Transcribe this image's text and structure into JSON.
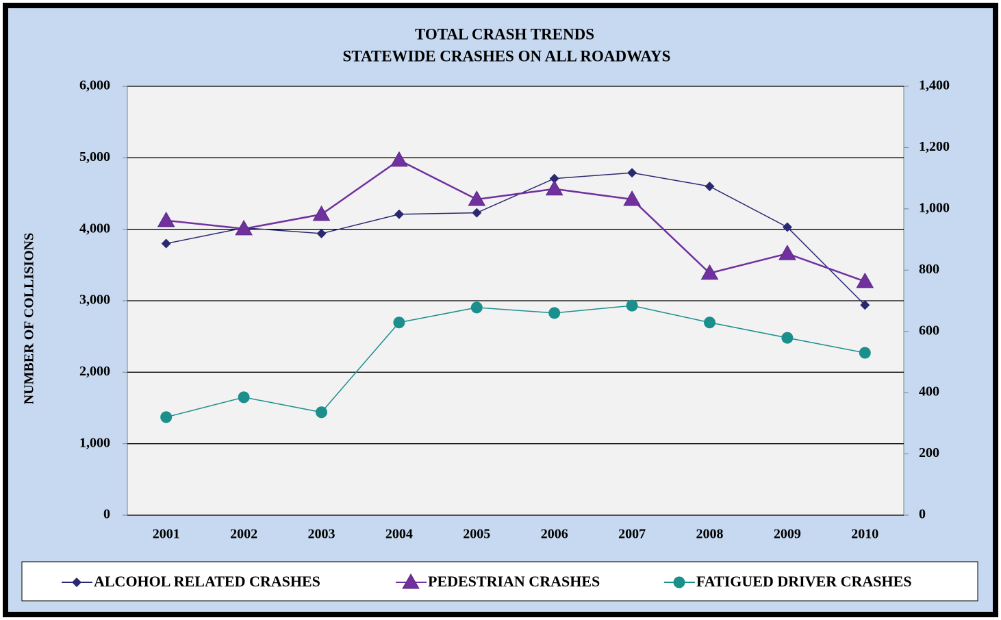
{
  "chart_data": {
    "type": "line",
    "title": "TOTAL CRASH TRENDS",
    "subtitle": "STATEWIDE CRASHES  ON ALL ROADWAYS",
    "y_label": "NUMBER OF COLLISIONS",
    "categories": [
      "2001",
      "2002",
      "2003",
      "2004",
      "2005",
      "2006",
      "2007",
      "2008",
      "2009",
      "2010"
    ],
    "series": [
      {
        "name": "ALCOHOL RELATED CRASHES",
        "color": "#2a2870",
        "marker": "diamond",
        "values": [
          3800,
          4020,
          3940,
          4210,
          4230,
          4710,
          4790,
          4600,
          4030,
          2940
        ]
      },
      {
        "name": "PEDESTRIAN CRASHES",
        "color": "#7030a0",
        "marker": "triangle",
        "axis": "y2",
        "values": [
          962,
          935,
          982,
          1159,
          1031,
          1065,
          1031,
          790,
          854,
          763
        ]
      },
      {
        "name": "FATIGUED DRIVER CRASHES",
        "color": "#1a8f8c",
        "marker": "circle",
        "axis": "y2",
        "values": [
          320,
          385,
          336,
          629,
          678,
          660,
          684,
          629,
          579,
          530
        ]
      }
    ],
    "ylim": [
      0,
      6000
    ],
    "yticks": [
      0,
      {
        "value": 1000,
        "label": "1,000"
      },
      {
        "value": 2000,
        "label": "2,000"
      },
      {
        "value": 3000,
        "label": "3,000"
      },
      {
        "value": 4000,
        "label": "4,000"
      },
      {
        "value": 5000,
        "label": "5,000"
      },
      {
        "value": 6000,
        "label": "6,000"
      }
    ],
    "y2lim": [
      0,
      1400
    ],
    "y2ticks": [
      0,
      200,
      400,
      600,
      800,
      {
        "value": 1000,
        "label": "1,000"
      },
      {
        "value": 1200,
        "label": "1,200"
      },
      {
        "value": 1400,
        "label": "1,400"
      }
    ],
    "grid": true,
    "legend": "bottom"
  }
}
